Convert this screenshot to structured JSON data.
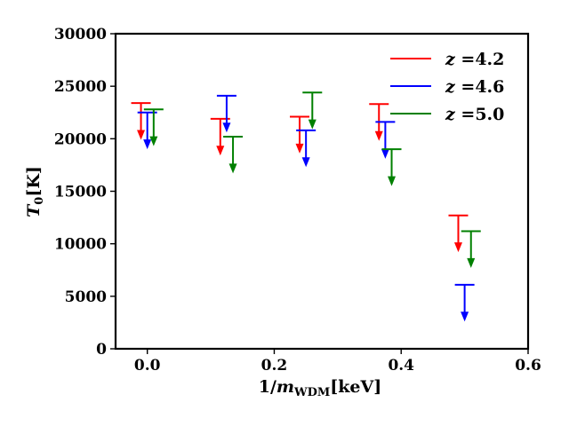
{
  "chart_data": {
    "type": "scatter",
    "subtype": "upper-limits",
    "title": "",
    "xlabel": "1/m_WDM[keV]",
    "xlabel_parts": {
      "prefix": "1/",
      "var": "m",
      "sub": "WDM",
      "suffix": "[keV]"
    },
    "ylabel": "T_0[K]",
    "ylabel_parts": {
      "var": "T",
      "sub": "0",
      "suffix": "[K]"
    },
    "xlim": [
      -0.05,
      0.6
    ],
    "ylim": [
      0,
      30000
    ],
    "xticks": [
      0.0,
      0.2,
      0.4,
      0.6
    ],
    "xtick_labels": [
      "0.0",
      "0.2",
      "0.4",
      "0.6"
    ],
    "yticks": [
      0,
      5000,
      10000,
      15000,
      20000,
      25000,
      30000
    ],
    "ytick_labels": [
      "0",
      "5000",
      "10000",
      "15000",
      "20000",
      "25000",
      "30000"
    ],
    "grid": false,
    "legend_position": "top-right",
    "arrow_length": 3500,
    "series": [
      {
        "name": "z =4.2",
        "label_var": "z",
        "label_rest": " =4.2",
        "color": "#ff0000",
        "x": [
          -0.01,
          0.115,
          0.24,
          0.365,
          0.49
        ],
        "y": [
          23400,
          21900,
          22100,
          23300,
          12700
        ]
      },
      {
        "name": "z =4.6",
        "label_var": "z",
        "label_rest": " =4.6",
        "color": "#0000ff",
        "x": [
          0.0,
          0.125,
          0.25,
          0.375,
          0.5
        ],
        "y": [
          22500,
          24100,
          20800,
          21600,
          6100
        ]
      },
      {
        "name": "z =5.0",
        "label_var": "z",
        "label_rest": " =5.0",
        "color": "#008000",
        "x": [
          0.01,
          0.135,
          0.26,
          0.385,
          0.51
        ],
        "y": [
          22800,
          20200,
          24400,
          19000,
          11200
        ]
      }
    ]
  }
}
